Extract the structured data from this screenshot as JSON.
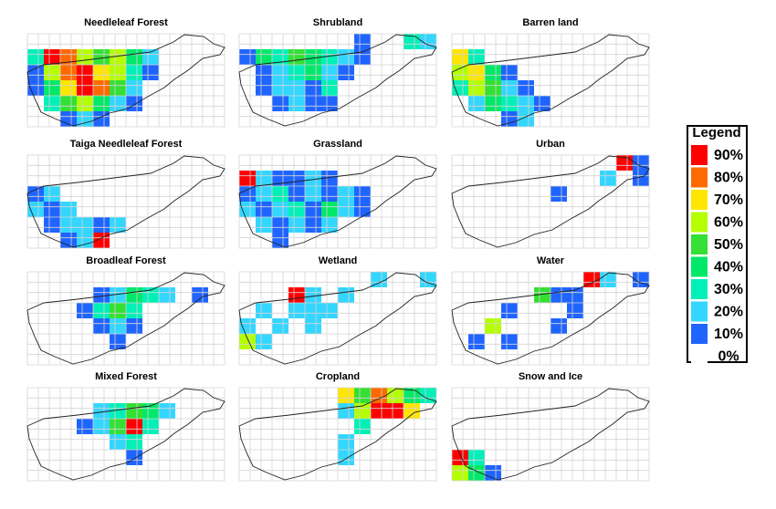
{
  "panels": [
    {
      "title": "Needleleaf Forest",
      "grid": [
        [
          null,
          null,
          null,
          null,
          null,
          null,
          null,
          null,
          null,
          null,
          null,
          null
        ],
        [
          30,
          90,
          80,
          60,
          50,
          60,
          40,
          20,
          null,
          null,
          null,
          null
        ],
        [
          10,
          60,
          80,
          90,
          70,
          60,
          30,
          10,
          null,
          null,
          null,
          null
        ],
        [
          10,
          40,
          70,
          90,
          80,
          50,
          20,
          null,
          null,
          null,
          null,
          null
        ],
        [
          null,
          30,
          50,
          60,
          40,
          20,
          10,
          null,
          null,
          null,
          null,
          null
        ],
        [
          null,
          null,
          10,
          20,
          10,
          null,
          null,
          null,
          null,
          null,
          null,
          null
        ]
      ]
    },
    {
      "title": "Shrubland",
      "grid": [
        [
          null,
          null,
          null,
          null,
          null,
          null,
          null,
          10,
          null,
          null,
          30,
          20
        ],
        [
          10,
          40,
          30,
          50,
          40,
          30,
          20,
          10,
          null,
          null,
          null,
          null
        ],
        [
          null,
          10,
          20,
          30,
          40,
          20,
          10,
          null,
          null,
          null,
          null,
          null
        ],
        [
          null,
          10,
          20,
          20,
          10,
          30,
          null,
          null,
          null,
          null,
          null,
          null
        ],
        [
          null,
          null,
          10,
          20,
          10,
          10,
          null,
          null,
          null,
          null,
          null,
          null
        ],
        [
          null,
          null,
          null,
          null,
          null,
          null,
          null,
          null,
          null,
          null,
          null,
          null
        ]
      ]
    },
    {
      "title": "Barren land",
      "grid": [
        [
          null,
          null,
          null,
          null,
          null,
          null,
          null,
          null,
          null,
          null,
          null,
          null
        ],
        [
          70,
          30,
          null,
          null,
          null,
          null,
          null,
          null,
          null,
          null,
          null,
          null
        ],
        [
          60,
          70,
          40,
          10,
          null,
          null,
          null,
          null,
          null,
          null,
          null,
          null
        ],
        [
          30,
          60,
          50,
          20,
          10,
          null,
          null,
          null,
          null,
          null,
          null,
          null
        ],
        [
          null,
          20,
          40,
          30,
          20,
          10,
          null,
          null,
          null,
          null,
          null,
          null
        ],
        [
          null,
          null,
          null,
          10,
          20,
          null,
          null,
          null,
          null,
          null,
          null,
          null
        ]
      ]
    },
    {
      "title": "Taiga Needleleaf Forest",
      "grid": [
        [
          null,
          null,
          null,
          null,
          null,
          null,
          null,
          null,
          null,
          null,
          null,
          null
        ],
        [
          null,
          null,
          null,
          null,
          null,
          null,
          null,
          null,
          null,
          null,
          null,
          null
        ],
        [
          10,
          20,
          null,
          null,
          null,
          null,
          null,
          null,
          null,
          null,
          null,
          null
        ],
        [
          20,
          10,
          20,
          null,
          null,
          null,
          null,
          null,
          null,
          null,
          null,
          null
        ],
        [
          null,
          10,
          20,
          20,
          10,
          20,
          null,
          null,
          null,
          null,
          null,
          null
        ],
        [
          null,
          null,
          10,
          20,
          90,
          null,
          null,
          null,
          null,
          null,
          null,
          null
        ]
      ]
    },
    {
      "title": "Grassland",
      "grid": [
        [
          null,
          null,
          null,
          null,
          null,
          null,
          null,
          null,
          null,
          null,
          null,
          null
        ],
        [
          90,
          20,
          10,
          10,
          20,
          10,
          null,
          null,
          null,
          null,
          null,
          null
        ],
        [
          10,
          20,
          30,
          10,
          20,
          10,
          20,
          10,
          null,
          null,
          null,
          null
        ],
        [
          20,
          10,
          20,
          30,
          10,
          40,
          20,
          10,
          null,
          null,
          null,
          null
        ],
        [
          null,
          20,
          10,
          20,
          10,
          20,
          null,
          null,
          null,
          null,
          null,
          null
        ],
        [
          null,
          null,
          10,
          null,
          null,
          null,
          null,
          null,
          null,
          null,
          null,
          null
        ]
      ]
    },
    {
      "title": "Urban",
      "grid": [
        [
          null,
          null,
          null,
          null,
          null,
          null,
          null,
          null,
          null,
          null,
          90,
          10
        ],
        [
          null,
          null,
          null,
          null,
          null,
          null,
          null,
          null,
          null,
          20,
          null,
          10
        ],
        [
          null,
          null,
          null,
          null,
          null,
          null,
          10,
          null,
          null,
          null,
          null,
          null
        ],
        [
          null,
          null,
          null,
          null,
          null,
          null,
          null,
          null,
          null,
          null,
          null,
          null
        ],
        [
          null,
          null,
          null,
          null,
          null,
          null,
          null,
          null,
          null,
          null,
          null,
          null
        ],
        [
          null,
          null,
          null,
          null,
          null,
          null,
          null,
          null,
          null,
          null,
          null,
          null
        ]
      ]
    },
    {
      "title": "Broadleaf Forest",
      "grid": [
        [
          null,
          null,
          null,
          null,
          null,
          null,
          null,
          null,
          null,
          null,
          null,
          null
        ],
        [
          null,
          null,
          null,
          null,
          10,
          20,
          40,
          30,
          20,
          null,
          10,
          null
        ],
        [
          null,
          null,
          null,
          10,
          30,
          50,
          30,
          null,
          null,
          null,
          null,
          null
        ],
        [
          null,
          null,
          null,
          null,
          10,
          20,
          10,
          null,
          null,
          null,
          null,
          null
        ],
        [
          null,
          null,
          null,
          null,
          null,
          10,
          null,
          null,
          null,
          null,
          null,
          null
        ],
        [
          null,
          null,
          null,
          null,
          null,
          null,
          null,
          null,
          null,
          null,
          null,
          null
        ]
      ]
    },
    {
      "title": "Wetland",
      "grid": [
        [
          null,
          null,
          null,
          null,
          null,
          null,
          null,
          null,
          20,
          null,
          null,
          20
        ],
        [
          null,
          null,
          null,
          90,
          20,
          null,
          20,
          null,
          null,
          null,
          null,
          null
        ],
        [
          null,
          20,
          null,
          20,
          20,
          20,
          null,
          null,
          null,
          null,
          null,
          null
        ],
        [
          20,
          null,
          20,
          null,
          20,
          null,
          null,
          null,
          null,
          null,
          null,
          null
        ],
        [
          60,
          20,
          null,
          null,
          null,
          null,
          null,
          null,
          null,
          null,
          null,
          null
        ],
        [
          null,
          null,
          null,
          null,
          null,
          null,
          null,
          null,
          null,
          null,
          null,
          null
        ]
      ]
    },
    {
      "title": "Water",
      "grid": [
        [
          null,
          null,
          null,
          null,
          null,
          null,
          null,
          null,
          90,
          20,
          null,
          10
        ],
        [
          null,
          null,
          null,
          null,
          null,
          50,
          10,
          10,
          null,
          null,
          null,
          null
        ],
        [
          null,
          null,
          null,
          10,
          null,
          null,
          null,
          10,
          null,
          null,
          null,
          null
        ],
        [
          null,
          null,
          60,
          null,
          null,
          null,
          10,
          null,
          null,
          null,
          null,
          null
        ],
        [
          null,
          10,
          null,
          10,
          null,
          null,
          null,
          null,
          null,
          null,
          null,
          null
        ],
        [
          null,
          null,
          null,
          null,
          null,
          null,
          null,
          null,
          null,
          null,
          null,
          null
        ]
      ]
    },
    {
      "title": "Mixed Forest",
      "grid": [
        [
          null,
          null,
          null,
          null,
          null,
          null,
          null,
          null,
          null,
          null,
          null,
          null
        ],
        [
          null,
          null,
          null,
          null,
          20,
          30,
          50,
          40,
          20,
          null,
          null,
          null
        ],
        [
          null,
          null,
          null,
          10,
          20,
          50,
          90,
          30,
          null,
          null,
          null,
          null
        ],
        [
          null,
          null,
          null,
          null,
          null,
          20,
          30,
          null,
          null,
          null,
          null,
          null
        ],
        [
          null,
          null,
          null,
          null,
          null,
          null,
          10,
          null,
          null,
          null,
          null,
          null
        ],
        [
          null,
          null,
          null,
          null,
          null,
          null,
          null,
          null,
          null,
          null,
          null,
          null
        ]
      ]
    },
    {
      "title": "Cropland",
      "grid": [
        [
          null,
          null,
          null,
          null,
          null,
          null,
          70,
          50,
          80,
          60,
          40,
          30
        ],
        [
          null,
          null,
          null,
          null,
          null,
          null,
          20,
          60,
          90,
          90,
          70,
          null
        ],
        [
          null,
          null,
          null,
          null,
          null,
          null,
          null,
          30,
          null,
          null,
          null,
          null
        ],
        [
          null,
          null,
          null,
          null,
          null,
          null,
          20,
          null,
          null,
          null,
          null,
          null
        ],
        [
          null,
          null,
          null,
          null,
          null,
          null,
          20,
          null,
          null,
          null,
          null,
          null
        ],
        [
          null,
          null,
          null,
          null,
          null,
          null,
          null,
          null,
          null,
          null,
          null,
          null
        ]
      ]
    },
    {
      "title": "Snow and Ice",
      "grid": [
        [
          null,
          null,
          null,
          null,
          null,
          null,
          null,
          null,
          null,
          null,
          null,
          null
        ],
        [
          null,
          null,
          null,
          null,
          null,
          null,
          null,
          null,
          null,
          null,
          null,
          null
        ],
        [
          null,
          null,
          null,
          null,
          null,
          null,
          null,
          null,
          null,
          null,
          null,
          null
        ],
        [
          null,
          null,
          null,
          null,
          null,
          null,
          null,
          null,
          null,
          null,
          null,
          null
        ],
        [
          90,
          30,
          null,
          null,
          null,
          null,
          null,
          null,
          null,
          null,
          null,
          null
        ],
        [
          60,
          40,
          10,
          null,
          null,
          null,
          null,
          null,
          null,
          null,
          null,
          null
        ]
      ]
    }
  ],
  "legend": {
    "title": "Legend",
    "levels": [
      {
        "value": 90,
        "label": "90%"
      },
      {
        "value": 80,
        "label": "80%"
      },
      {
        "value": 70,
        "label": "70%"
      },
      {
        "value": 60,
        "label": "60%"
      },
      {
        "value": 50,
        "label": "50%"
      },
      {
        "value": 40,
        "label": "40%"
      },
      {
        "value": 30,
        "label": "30%"
      },
      {
        "value": 20,
        "label": "20%"
      },
      {
        "value": 10,
        "label": "10%"
      },
      {
        "value": 0,
        "label": "0%"
      }
    ],
    "colors": [
      "#ff0000",
      "#ff6a00",
      "#ffe600",
      "#b4ff00",
      "#33e033",
      "#00e868",
      "#00f0b8",
      "#33d6ff",
      "#1f64ff",
      "#ffffff"
    ]
  }
}
